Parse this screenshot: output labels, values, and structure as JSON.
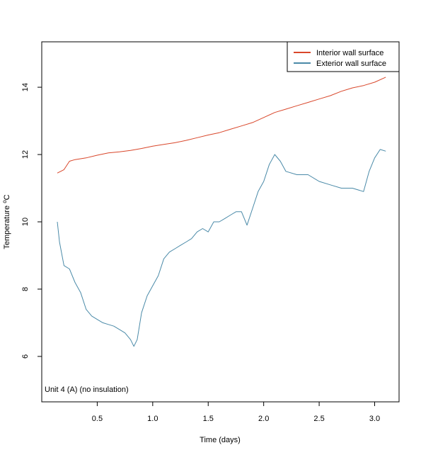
{
  "chart_data": {
    "type": "line",
    "title": "",
    "xlabel": "Time (days)",
    "ylabel_main": "Temperature ",
    "ylabel_sup": "o",
    "ylabel_unit": "C",
    "xlim": [
      0.0,
      3.22
    ],
    "ylim": [
      4.65,
      15.35
    ],
    "x_ticks": [
      0.5,
      1.0,
      1.5,
      2.0,
      2.5,
      3.0
    ],
    "x_tick_labels": [
      "0.5",
      "1.0",
      "1.5",
      "2.0",
      "2.5",
      "3.0"
    ],
    "y_ticks": [
      6,
      8,
      10,
      12,
      14
    ],
    "y_tick_labels": [
      "6",
      "8",
      "10",
      "12",
      "14"
    ],
    "grid": false,
    "legend_position": "top-right",
    "annotation": "Unit 4 (A) (no insulation)",
    "series": [
      {
        "name": "Interior wall surface",
        "color": "#d9472b",
        "x": [
          0.14,
          0.2,
          0.25,
          0.3,
          0.4,
          0.5,
          0.6,
          0.7,
          0.8,
          0.9,
          1.0,
          1.1,
          1.2,
          1.3,
          1.4,
          1.5,
          1.6,
          1.7,
          1.8,
          1.9,
          2.0,
          2.1,
          2.2,
          2.3,
          2.4,
          2.5,
          2.6,
          2.7,
          2.8,
          2.9,
          3.0,
          3.1
        ],
        "values": [
          11.45,
          11.55,
          11.8,
          11.85,
          11.9,
          11.98,
          12.05,
          12.08,
          12.12,
          12.18,
          12.25,
          12.3,
          12.35,
          12.42,
          12.5,
          12.58,
          12.65,
          12.75,
          12.85,
          12.95,
          13.1,
          13.25,
          13.35,
          13.45,
          13.55,
          13.65,
          13.75,
          13.88,
          13.98,
          14.05,
          14.15,
          14.3
        ]
      },
      {
        "name": "Exterior wall surface",
        "color": "#4a8aa8",
        "x": [
          0.14,
          0.16,
          0.2,
          0.25,
          0.3,
          0.35,
          0.4,
          0.45,
          0.5,
          0.55,
          0.6,
          0.65,
          0.7,
          0.75,
          0.8,
          0.83,
          0.86,
          0.9,
          0.95,
          1.0,
          1.05,
          1.1,
          1.15,
          1.2,
          1.25,
          1.3,
          1.35,
          1.4,
          1.45,
          1.5,
          1.55,
          1.6,
          1.65,
          1.7,
          1.75,
          1.8,
          1.85,
          1.9,
          1.95,
          2.0,
          2.05,
          2.1,
          2.15,
          2.2,
          2.3,
          2.4,
          2.5,
          2.6,
          2.7,
          2.8,
          2.9,
          2.95,
          3.0,
          3.05,
          3.1
        ],
        "values": [
          10.0,
          9.4,
          8.7,
          8.6,
          8.2,
          7.9,
          7.4,
          7.2,
          7.1,
          7.0,
          6.95,
          6.9,
          6.8,
          6.7,
          6.5,
          6.3,
          6.5,
          7.3,
          7.8,
          8.1,
          8.4,
          8.9,
          9.1,
          9.2,
          9.3,
          9.4,
          9.5,
          9.7,
          9.8,
          9.7,
          10.0,
          10.0,
          10.1,
          10.2,
          10.3,
          10.3,
          9.9,
          10.4,
          10.9,
          11.2,
          11.7,
          12.0,
          11.8,
          11.5,
          11.4,
          11.4,
          11.2,
          11.1,
          11.0,
          11.0,
          10.9,
          11.5,
          11.9,
          12.15,
          12.1
        ]
      }
    ]
  }
}
